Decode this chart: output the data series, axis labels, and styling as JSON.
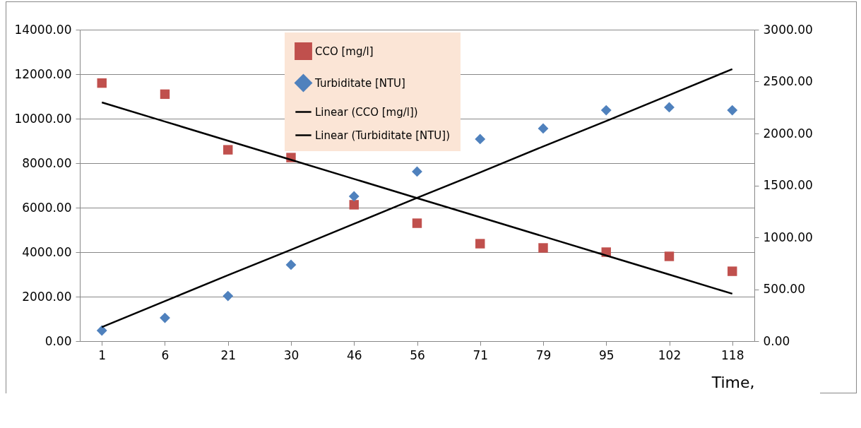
{
  "chart_data": {
    "type": "scatter",
    "xlabel": "Time,",
    "categories": [
      "1",
      "6",
      "21",
      "30",
      "46",
      "56",
      "71",
      "79",
      "95",
      "102",
      "118"
    ],
    "series": [
      {
        "name": "CCO [mg/l]",
        "marker": "square",
        "color": "#c0504d",
        "values": [
          11600,
          11100,
          8600,
          8250,
          6130,
          5300,
          4380,
          4190,
          4000,
          3810,
          3140
        ]
      },
      {
        "name": "Turbiditate [NTU]",
        "marker": "diamond",
        "axis": "y2",
        "color": "#4f81bd",
        "values": [
          102,
          224,
          435,
          735,
          1395,
          1633,
          1946,
          2048,
          2224,
          2252,
          2224
        ]
      },
      {
        "name": "Linear (CCO [mg/l])",
        "type": "line",
        "marker": "none",
        "line_style": "solid",
        "color": "#000000",
        "values": [
          10730,
          9870,
          9010,
          8150,
          7290,
          6430,
          5570,
          4710,
          3850,
          2990,
          2130
        ]
      },
      {
        "name": "Linear (Turbiditate [NTU])",
        "type": "line",
        "marker": "none",
        "line_style": "solid",
        "axis": "y2",
        "color": "#000000",
        "values": [
          135,
          385,
          635,
          880,
          1130,
          1380,
          1625,
          1875,
          2120,
          2370,
          2620
        ]
      }
    ],
    "ylim": [
      0,
      14000
    ],
    "yticks": [
      {
        "value": 0,
        "label": "0.00"
      },
      {
        "value": 2000,
        "label": "2000.00"
      },
      {
        "value": 4000,
        "label": "4000.00"
      },
      {
        "value": 6000,
        "label": "6000.00"
      },
      {
        "value": 8000,
        "label": "8000.00"
      },
      {
        "value": 10000,
        "label": "10000.00"
      },
      {
        "value": 12000,
        "label": "12000.00"
      },
      {
        "value": 14000,
        "label": "14000.00"
      }
    ],
    "y2lim": [
      0,
      3000
    ],
    "y2ticks": [
      {
        "value": 0,
        "label": "0.00"
      },
      {
        "value": 500,
        "label": "500.00"
      },
      {
        "value": 1000,
        "label": "1000.00"
      },
      {
        "value": 1500,
        "label": "1500.00"
      },
      {
        "value": 2000,
        "label": "2000.00"
      },
      {
        "value": 2500,
        "label": "2500.00"
      },
      {
        "value": 3000,
        "label": "3000.00"
      }
    ],
    "grid": "y",
    "legend": "top"
  }
}
